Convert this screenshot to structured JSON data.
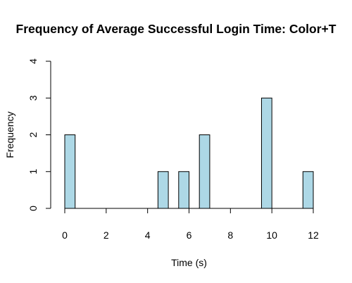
{
  "chart_data": {
    "type": "bar",
    "title": "Frequency of Average Successful Login Time: Color+T",
    "xlabel": "Time (s)",
    "ylabel": "Frequency",
    "bin_width": 0.5,
    "xlim": [
      0,
      12
    ],
    "ylim": [
      0,
      4
    ],
    "xticks": [
      0,
      2,
      4,
      6,
      8,
      10,
      12
    ],
    "yticks": [
      0,
      1,
      2,
      3,
      4
    ],
    "bars": [
      {
        "x0": 0.0,
        "x1": 0.5,
        "count": 2
      },
      {
        "x0": 4.5,
        "x1": 5.0,
        "count": 1
      },
      {
        "x0": 5.5,
        "x1": 6.0,
        "count": 1
      },
      {
        "x0": 6.5,
        "x1": 7.0,
        "count": 2
      },
      {
        "x0": 9.5,
        "x1": 10.0,
        "count": 3
      },
      {
        "x0": 11.5,
        "x1": 12.0,
        "count": 1
      }
    ],
    "bar_color": "#ADD8E6",
    "grid": false,
    "legend": "none"
  }
}
